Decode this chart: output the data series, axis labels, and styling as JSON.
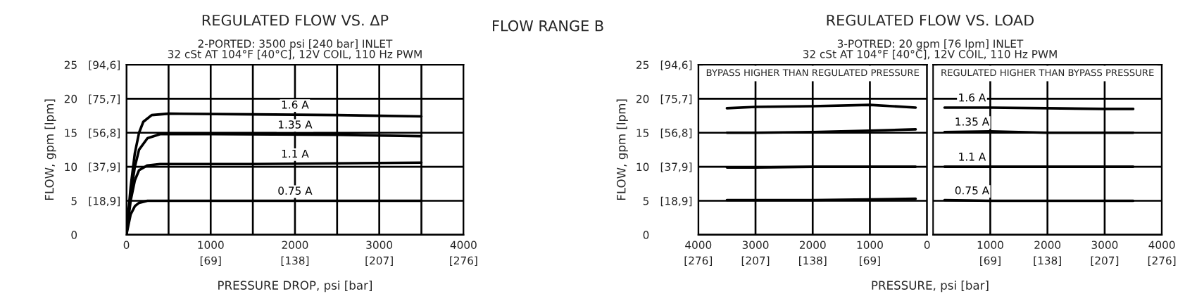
{
  "chart_data": [
    {
      "type": "line",
      "title": "REGULATED FLOW VS. ΔP",
      "subtitle": "2-PORTED: 3500 psi [240 bar] INLET\n32 cSt AT 104°F [40°C], 12V COIL, 110 Hz PWM",
      "xlabel": "PRESSURE DROP, psi [bar]",
      "ylabel": "FLOW, gpm [lpm]",
      "xlim": [
        0,
        4000
      ],
      "ylim": [
        0,
        25
      ],
      "xticks": [
        0,
        {
          "value": 500,
          "label": null
        },
        1000,
        {
          "value": 1500,
          "label": null
        },
        2000,
        {
          "value": 2500,
          "label": null
        },
        3000,
        {
          "value": 3500,
          "label": null
        },
        4000
      ],
      "yticks": [
        0,
        5,
        10,
        15,
        20,
        25
      ],
      "x2lim": [
        0,
        276
      ],
      "x2ticks": [
        {
          "value": 69,
          "label": "[69]"
        },
        {
          "value": 138,
          "label": "[138]"
        },
        {
          "value": 207,
          "label": "[207]"
        },
        {
          "value": 276,
          "label": "[276]"
        }
      ],
      "y2lim": [
        0,
        94.6
      ],
      "y2ticks": [
        {
          "value": 18.9,
          "label": "[18,9]"
        },
        {
          "value": 37.9,
          "label": "[37,9]"
        },
        {
          "value": 56.8,
          "label": "[56,8]"
        },
        {
          "value": 75.7,
          "label": "[75,7]"
        },
        {
          "value": 94.6,
          "label": "[94,6]"
        }
      ],
      "grid": true,
      "line_style": "solid",
      "marker": "none",
      "series": [
        {
          "name": "1.6 A",
          "color": "#000000",
          "x": [
            0,
            50,
            100,
            150,
            200,
            300,
            500,
            1500,
            2500,
            3500
          ],
          "values": [
            0,
            7,
            12,
            15,
            16.6,
            17.6,
            17.8,
            17.7,
            17.6,
            17.4
          ]
        },
        {
          "name": "1.35 A",
          "color": "#000000",
          "x": [
            0,
            50,
            100,
            150,
            250,
            400,
            1000,
            2500,
            3500
          ],
          "values": [
            0,
            6,
            10,
            12.5,
            14.2,
            14.8,
            14.8,
            14.7,
            14.5
          ]
        },
        {
          "name": "1.1 A",
          "color": "#000000",
          "x": [
            0,
            50,
            100,
            150,
            250,
            400,
            1500,
            3500
          ],
          "values": [
            0,
            5,
            8,
            9.5,
            10.2,
            10.4,
            10.4,
            10.6
          ]
        },
        {
          "name": "0.75 A",
          "color": "#000000",
          "x": [
            0,
            50,
            100,
            150,
            250,
            500,
            3500
          ],
          "values": [
            0,
            3,
            4.2,
            4.7,
            5.0,
            5.0,
            5.0
          ]
        }
      ],
      "annotations": [
        "FLOW RANGE B"
      ]
    },
    {
      "type": "line",
      "title": "REGULATED FLOW VS. LOAD",
      "subtitle": "3-POTRED: 20 gpm [76 lpm] INLET\n32 cSt AT 104°F [40°C], 12V COIL, 110 Hz PWM",
      "xlabel": "PRESSURE, psi [bar]",
      "ylabel": "FLOW, gpm [lpm]",
      "xlim": [
        4000,
        0
      ],
      "ylim": [
        0,
        25
      ],
      "xticks": [
        4000,
        3000,
        2000,
        1000,
        0
      ],
      "yticks": [
        0,
        5,
        10,
        15,
        20,
        25
      ],
      "x2lim": [
        276,
        0
      ],
      "x2ticks": [
        {
          "value": 276,
          "label": "[276]"
        },
        {
          "value": 207,
          "label": "[207]"
        },
        {
          "value": 138,
          "label": "[138]"
        },
        {
          "value": 69,
          "label": "[69]"
        }
      ],
      "y2lim": [
        0,
        94.6
      ],
      "y2ticks": [
        {
          "value": 18.9,
          "label": "[18,9]"
        },
        {
          "value": 37.9,
          "label": "[37,9]"
        },
        {
          "value": 56.8,
          "label": "[56,8]"
        },
        {
          "value": 75.7,
          "label": "[75,7]"
        },
        {
          "value": 94.6,
          "label": "[94,6]"
        }
      ],
      "grid": true,
      "line_style": "solid",
      "marker": "none",
      "x": [
        3500,
        3000,
        2000,
        1000,
        200
      ],
      "series": [
        {
          "color": "#000000",
          "values": [
            18.6,
            18.8,
            18.9,
            19.1,
            18.7
          ]
        },
        {
          "color": "#000000",
          "values": [
            15.0,
            15.0,
            15.1,
            15.3,
            15.5
          ]
        },
        {
          "color": "#000000",
          "values": [
            9.9,
            9.9,
            10.0,
            10.0,
            10.0
          ]
        },
        {
          "color": "#000000",
          "values": [
            5.1,
            5.1,
            5.1,
            5.2,
            5.3
          ]
        }
      ],
      "annotations": [
        "BYPASS HIGHER THAN REGULATED PRESSURE"
      ]
    },
    {
      "type": "line",
      "xlim": [
        0,
        4000
      ],
      "ylim": [
        0,
        25
      ],
      "xticks": [
        1000,
        2000,
        3000,
        4000
      ],
      "yticks": [
        0,
        5,
        10,
        15,
        20,
        25
      ],
      "x2lim": [
        0,
        276
      ],
      "x2ticks": [
        {
          "value": 69,
          "label": "[69]"
        },
        {
          "value": 138,
          "label": "[138]"
        },
        {
          "value": 207,
          "label": "[207]"
        },
        {
          "value": 276,
          "label": "[276]"
        }
      ],
      "tick_labels": "x",
      "grid": true,
      "line_style": "solid",
      "marker": "none",
      "x": [
        200,
        1000,
        2000,
        3000,
        3500
      ],
      "series": [
        {
          "name": "1.6 A",
          "color": "#000000",
          "values": [
            18.7,
            18.7,
            18.6,
            18.5,
            18.5
          ]
        },
        {
          "name": "1.35 A",
          "color": "#000000",
          "values": [
            15.1,
            15.2,
            15.0,
            15.0,
            15.0
          ]
        },
        {
          "name": "1.1 A",
          "color": "#000000",
          "values": [
            10.0,
            10.0,
            10.0,
            10.0,
            10.0
          ]
        },
        {
          "name": "0.75 A",
          "color": "#000000",
          "values": [
            5.1,
            5.0,
            5.0,
            5.0,
            5.0
          ]
        }
      ],
      "annotations": [
        "REGULATED HIGHER THAN BYPASS PRESSURE"
      ]
    }
  ]
}
